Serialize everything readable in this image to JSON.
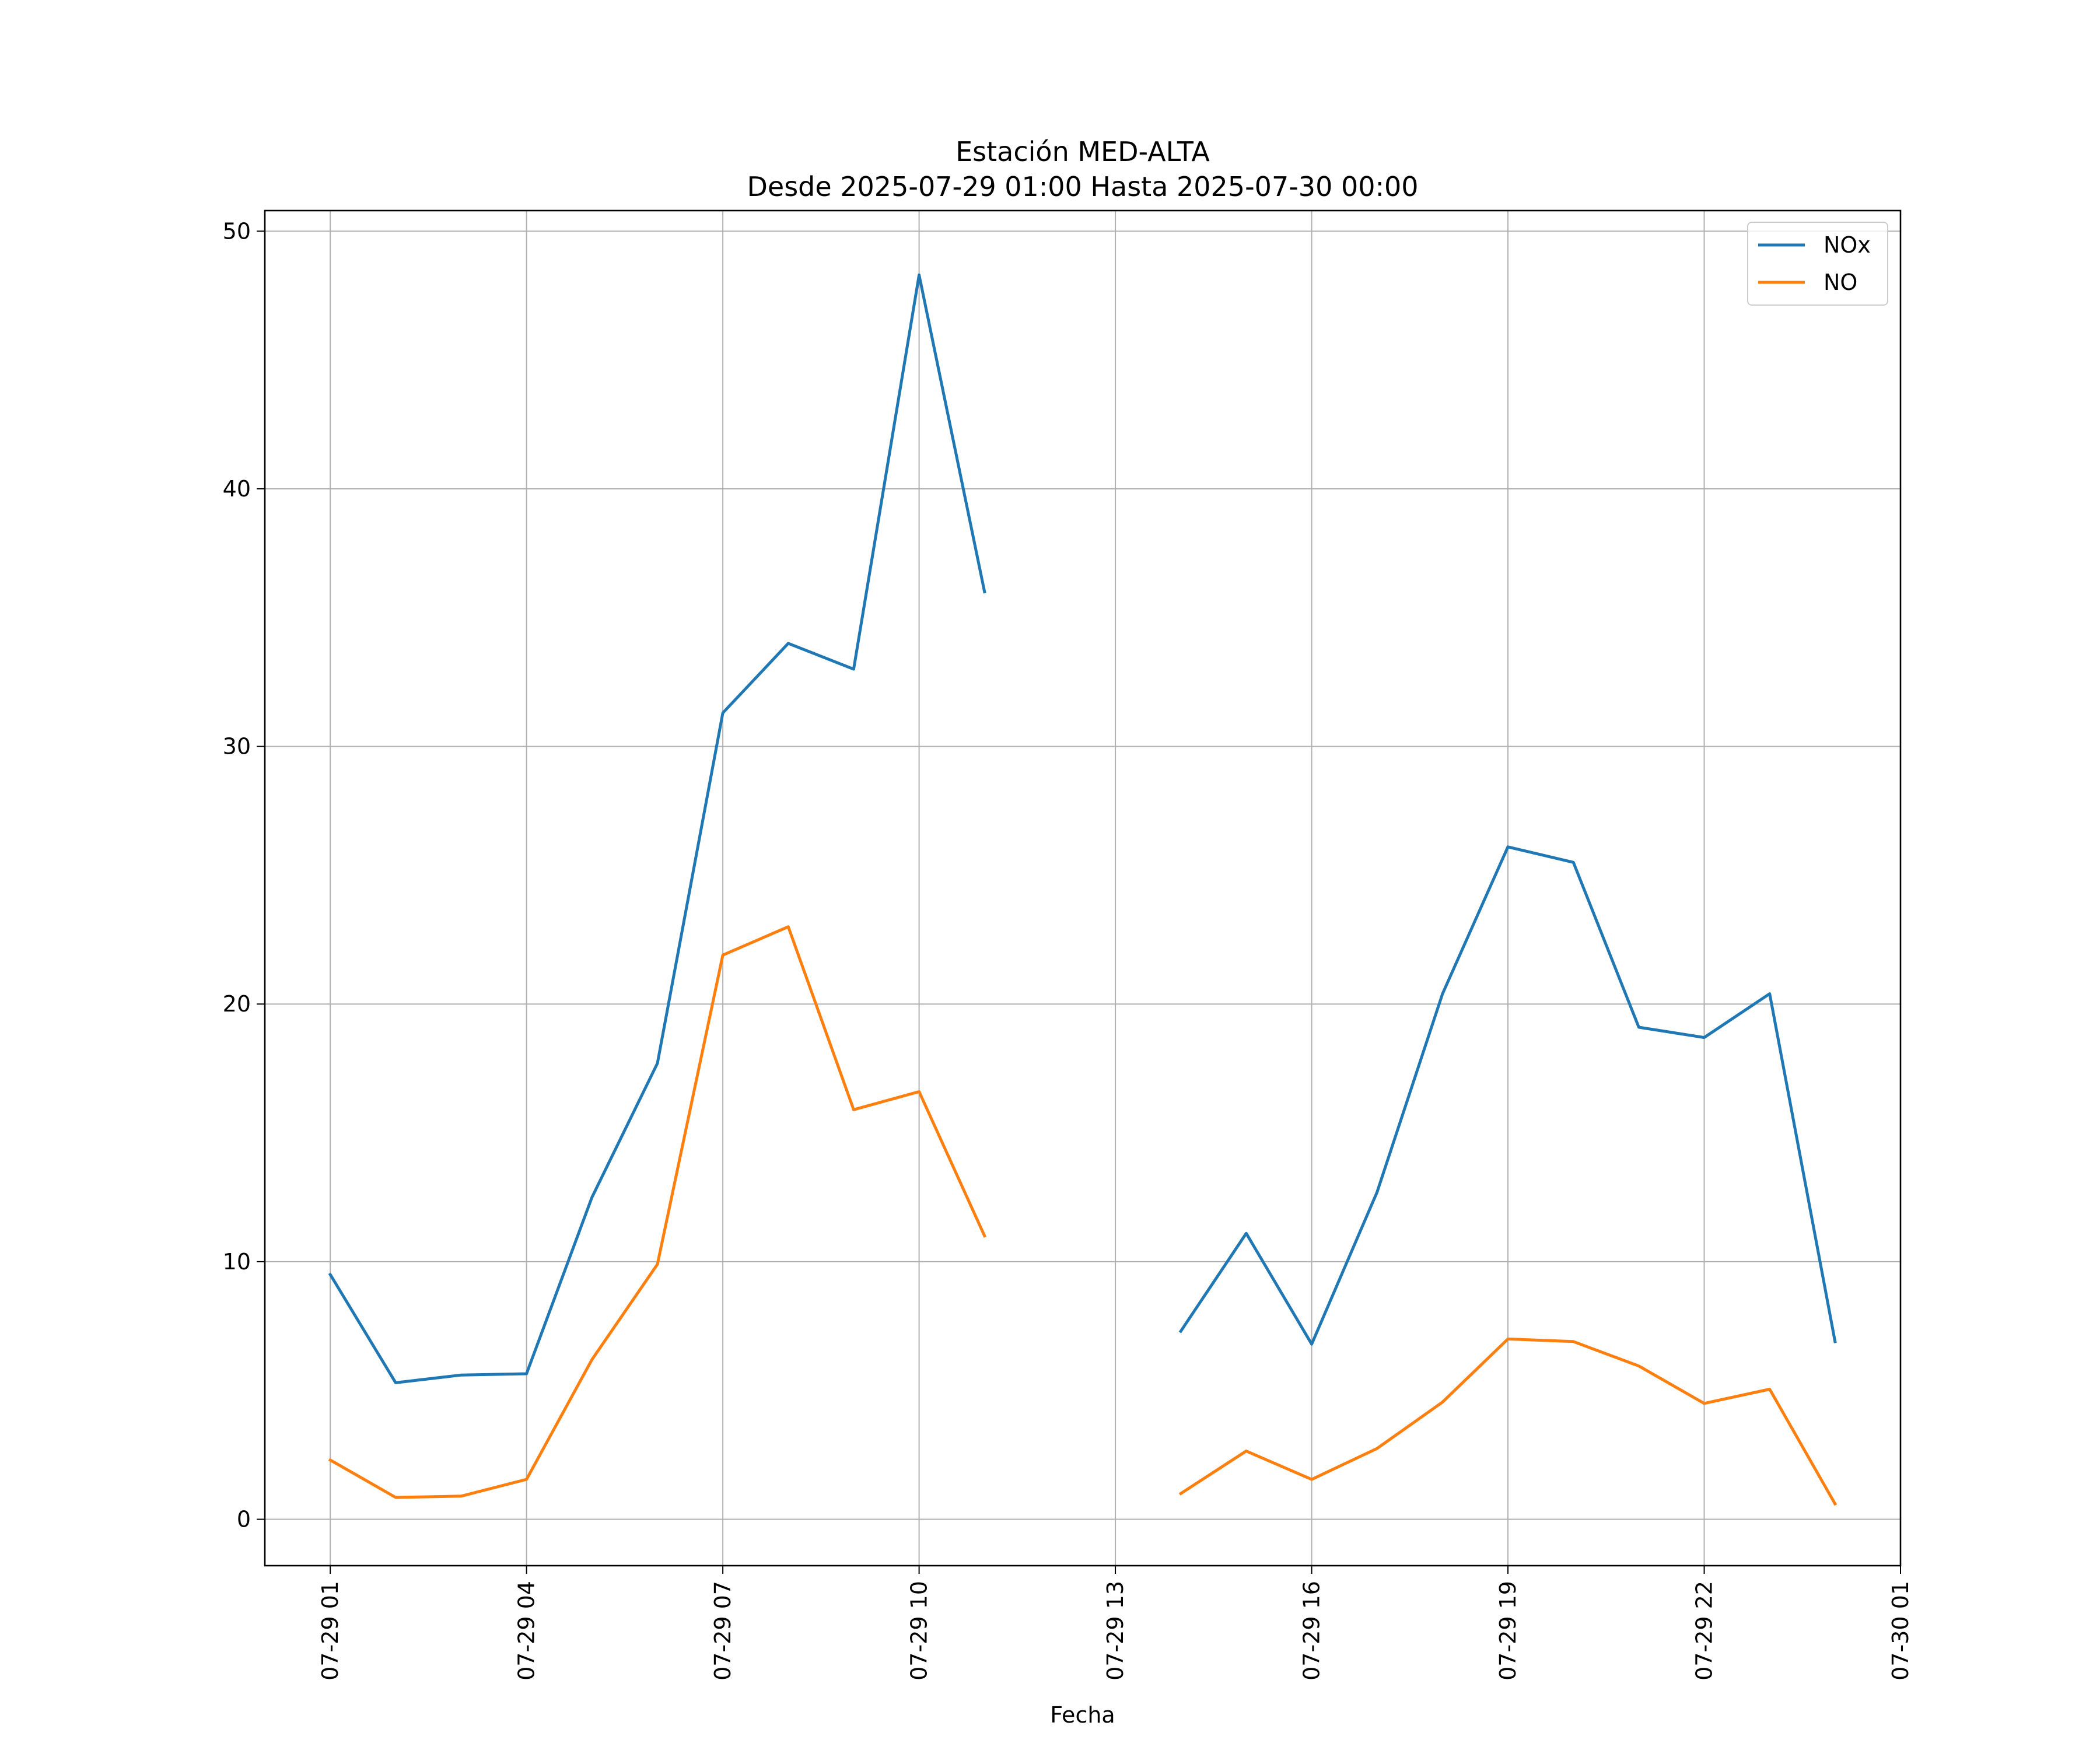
{
  "chart_data": {
    "type": "line",
    "title": "Estación MED-ALTA",
    "subtitle": "Desde 2025-07-29 01:00 Hasta 2025-07-30 00:00",
    "xlabel": "Fecha",
    "ylabel": "",
    "x": [
      "07-29 01:00",
      "07-29 02:00",
      "07-29 03:00",
      "07-29 04:00",
      "07-29 05:00",
      "07-29 06:00",
      "07-29 07:00",
      "07-29 08:00",
      "07-29 09:00",
      "07-29 10:00",
      "07-29 11:00",
      "07-29 12:00",
      "07-29 13:00",
      "07-29 14:00",
      "07-29 15:00",
      "07-29 16:00",
      "07-29 17:00",
      "07-29 18:00",
      "07-29 19:00",
      "07-29 20:00",
      "07-29 21:00",
      "07-29 22:00",
      "07-29 23:00",
      "07-30 00:00"
    ],
    "xticks": [
      "07-29 01",
      "07-29 04",
      "07-29 07",
      "07-29 10",
      "07-29 13",
      "07-29 16",
      "07-29 19",
      "07-29 22",
      "07-30 01"
    ],
    "xlim": [
      "07-29 00:00",
      "07-30 01:00"
    ],
    "ylim": [
      -1.8,
      50.8
    ],
    "yticks": [
      "0",
      "10",
      "20",
      "30",
      "40",
      "50"
    ],
    "grid": true,
    "legend": "upper-right",
    "series": [
      {
        "name": "NOx",
        "color": "#1f77b4",
        "values": [
          9.5,
          5.3,
          5.6,
          5.65,
          12.5,
          17.7,
          31.3,
          34.0,
          33.0,
          48.3,
          36.0,
          null,
          null,
          7.3,
          11.1,
          6.8,
          12.7,
          20.4,
          26.1,
          25.5,
          19.1,
          18.7,
          20.4,
          6.9
        ]
      },
      {
        "name": "NO",
        "color": "#ff7f0e",
        "values": [
          2.3,
          0.85,
          0.9,
          1.55,
          6.2,
          9.9,
          21.9,
          23.0,
          15.9,
          16.6,
          11.0,
          null,
          null,
          1.0,
          2.65,
          1.55,
          2.75,
          4.55,
          7.0,
          6.9,
          5.95,
          4.5,
          5.05,
          0.6
        ]
      }
    ]
  }
}
